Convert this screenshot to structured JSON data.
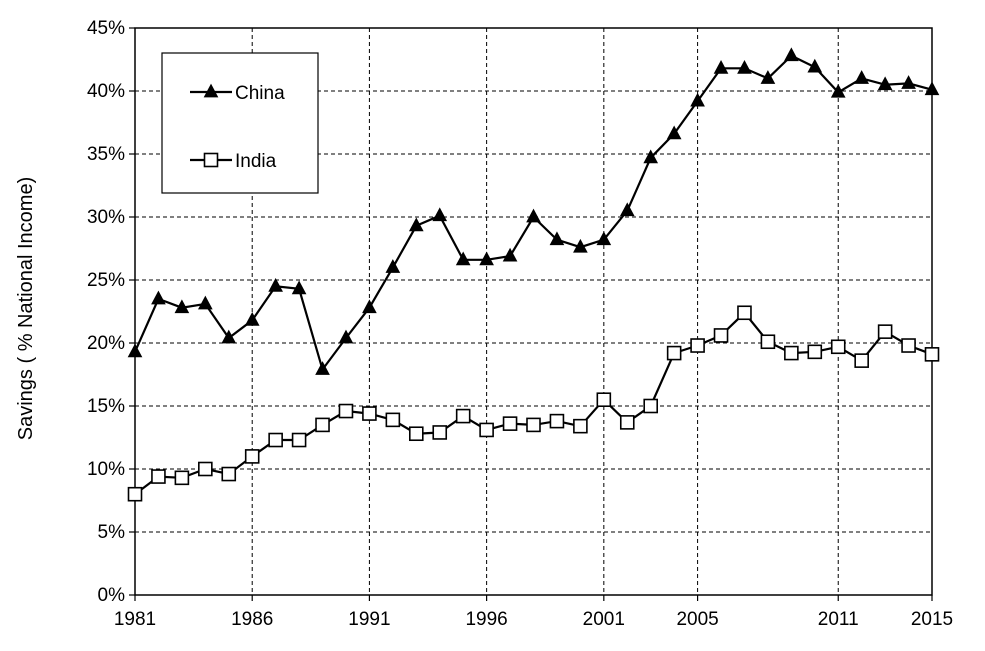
{
  "chart_data": {
    "type": "line",
    "ylabel": "Savings ( % National Income)",
    "xlabel": "",
    "title": "",
    "x_tick_labels": [
      "1981",
      "1986",
      "1991",
      "1996",
      "2001",
      "2005",
      "2011",
      "2015"
    ],
    "y_tick_labels": [
      "0%",
      "5%",
      "10%",
      "15%",
      "20%",
      "25%",
      "30%",
      "35%",
      "40%",
      "45%"
    ],
    "ylim": [
      0,
      45
    ],
    "xlim": [
      1981,
      2015
    ],
    "grid": true,
    "legend_position": "top-left",
    "x": [
      1981,
      1982,
      1983,
      1984,
      1985,
      1986,
      1987,
      1988,
      1989,
      1990,
      1991,
      1992,
      1993,
      1994,
      1995,
      1996,
      1997,
      1998,
      1999,
      2000,
      2001,
      2002,
      2003,
      2004,
      2005,
      2006,
      2007,
      2008,
      2009,
      2010,
      2011,
      2012,
      2013,
      2014,
      2015
    ],
    "series": [
      {
        "name": "China",
        "marker": "filled-triangle",
        "color": "#000000",
        "values": [
          19.3,
          23.5,
          22.8,
          23.1,
          20.4,
          21.8,
          24.5,
          24.3,
          17.9,
          20.4,
          22.8,
          26.0,
          29.3,
          30.1,
          26.6,
          26.6,
          26.9,
          30.0,
          28.2,
          27.6,
          28.2,
          30.5,
          34.7,
          36.6,
          39.2,
          41.8,
          41.8,
          41.0,
          42.8,
          41.9,
          39.9,
          41.0,
          40.5,
          40.6,
          40.1
        ]
      },
      {
        "name": "India",
        "marker": "open-square",
        "color": "#000000",
        "values": [
          8.0,
          9.4,
          9.3,
          10.0,
          9.6,
          11.0,
          12.3,
          12.3,
          13.5,
          14.6,
          14.4,
          13.9,
          12.8,
          12.9,
          14.2,
          13.1,
          13.6,
          13.5,
          13.8,
          13.4,
          15.5,
          13.7,
          15.0,
          19.2,
          19.8,
          20.6,
          22.4,
          20.1,
          19.2,
          19.3,
          19.7,
          18.6,
          20.9,
          19.8,
          19.1
        ]
      }
    ]
  }
}
